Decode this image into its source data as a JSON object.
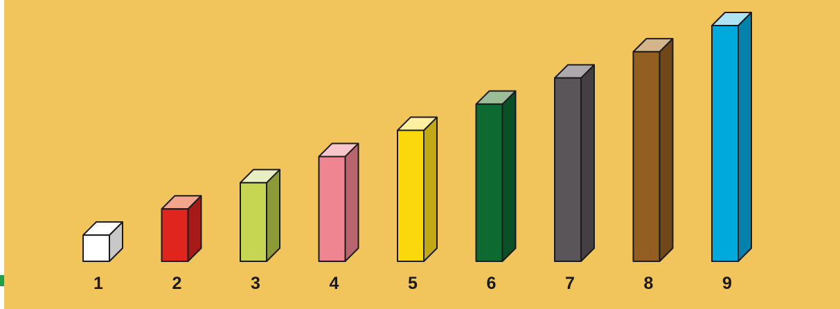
{
  "chart_data": {
    "type": "bar",
    "categories": [
      "1",
      "2",
      "3",
      "4",
      "5",
      "6",
      "7",
      "8",
      "9"
    ],
    "values": [
      1,
      2,
      3,
      4,
      5,
      6,
      7,
      8,
      9
    ],
    "ylim": [
      0,
      9
    ],
    "grid": false,
    "background": "#f2c45c",
    "bar_colors": [
      {
        "front": "#ffffff",
        "top": "#ffffff",
        "side": "#c8c8c8"
      },
      {
        "front": "#e0251e",
        "top": "#f3a48c",
        "side": "#a61b18"
      },
      {
        "front": "#c6d652",
        "top": "#e6eec2",
        "side": "#8d9a39"
      },
      {
        "front": "#ee8590",
        "top": "#f7c6cb",
        "side": "#b76670"
      },
      {
        "front": "#fbd80e",
        "top": "#fdf0a0",
        "side": "#c2a815"
      },
      {
        "front": "#0d6a30",
        "top": "#9cbd97",
        "side": "#0a4f25"
      },
      {
        "front": "#595559",
        "top": "#ada9ad",
        "side": "#433f42"
      },
      {
        "front": "#935e21",
        "top": "#d4b48a",
        "side": "#6f4719"
      },
      {
        "front": "#00a9db",
        "top": "#aee2f5",
        "side": "#0082aa"
      }
    ]
  }
}
